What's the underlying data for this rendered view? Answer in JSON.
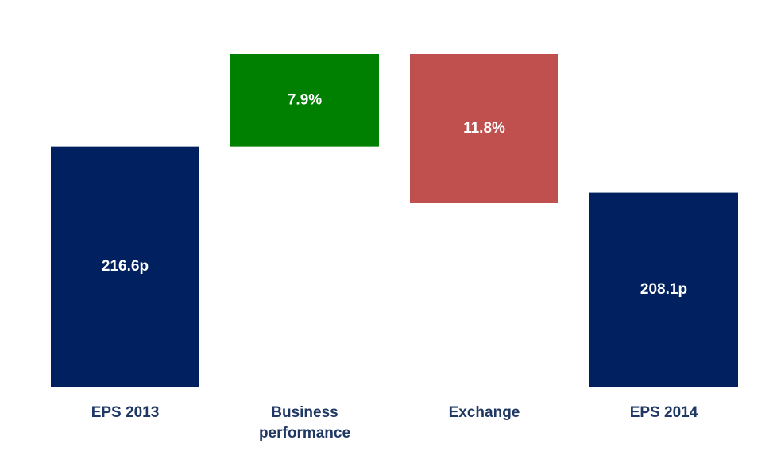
{
  "chart_data": {
    "type": "waterfall",
    "categories": [
      "EPS 2013",
      "Business performance",
      "Exchange",
      "EPS 2014"
    ],
    "values": [
      216.6,
      7.9,
      11.8,
      208.1
    ],
    "value_labels": [
      "216.6p",
      "7.9%",
      "11.8%",
      "208.1p"
    ],
    "measures": [
      "total",
      "increase",
      "decrease",
      "total"
    ],
    "colors": [
      "#002060",
      "#008000",
      "#c0504d",
      "#002060"
    ]
  }
}
